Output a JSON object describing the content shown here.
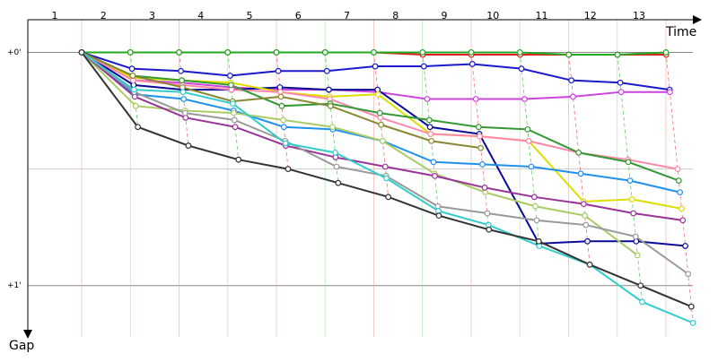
{
  "chart_data": {
    "type": "line",
    "x_label": "Time",
    "y_label": "Gap",
    "categories": [
      "1",
      "2",
      "3",
      "4",
      "5",
      "6",
      "7",
      "8",
      "9",
      "10",
      "11",
      "12",
      "13"
    ],
    "ylim": [
      -0.14,
      1.22
    ],
    "yticks": [
      {
        "value": 0,
        "label": "+0'"
      },
      {
        "value": 1,
        "label": "+1'"
      }
    ],
    "y_minor_ticks": [
      0.5
    ],
    "grid": true,
    "series": [
      {
        "color": "#e02020",
        "values": [
          0,
          0,
          0,
          0,
          0,
          0,
          0,
          0.01,
          0.01,
          0.01,
          0.01,
          0.01,
          0.01
        ]
      },
      {
        "color": "#22aa22",
        "values": [
          0,
          0,
          0,
          0,
          0,
          0,
          0,
          0,
          0,
          0,
          0.01,
          0.01,
          0
        ]
      },
      {
        "color": "#1a1acc",
        "values": [
          0,
          0.07,
          0.08,
          0.1,
          0.08,
          0.08,
          0.06,
          0.06,
          0.05,
          0.07,
          0.12,
          0.13,
          0.16
        ]
      },
      {
        "color": "#cc44dd",
        "values": [
          0,
          0.12,
          0.13,
          0.15,
          0.16,
          0.16,
          0.17,
          0.2,
          0.2,
          0.2,
          0.19,
          0.17,
          0.17
        ]
      },
      {
        "color": "#0a0a99",
        "values": [
          0,
          0.14,
          0.16,
          0.16,
          0.15,
          0.16,
          0.16,
          0.32,
          0.35,
          0.82,
          0.81,
          0.81,
          0.83
        ]
      },
      {
        "color": "#dddd00",
        "values": [
          0,
          0.11,
          0.12,
          0.13,
          0.17,
          0.19,
          0.18,
          0.35,
          0.36,
          0.38,
          0.64,
          0.63,
          0.67
        ]
      },
      {
        "color": "#ff88aa",
        "values": [
          0,
          0.12,
          0.14,
          0.16,
          0.17,
          0.2,
          0.28,
          0.35,
          0.36,
          0.38,
          0.43,
          0.46,
          0.5
        ]
      },
      {
        "color": "#339933",
        "values": [
          0,
          0.1,
          0.12,
          0.14,
          0.23,
          0.22,
          0.26,
          0.29,
          0.32,
          0.33,
          0.43,
          0.47,
          0.55
        ]
      },
      {
        "color": "#888833",
        "values": [
          0,
          0.1,
          0.15,
          0.21,
          0.19,
          0.23,
          0.31,
          0.38,
          0.41,
          null,
          null,
          null,
          null
        ]
      },
      {
        "color": "#1e90ee",
        "values": [
          0,
          0.18,
          0.2,
          0.25,
          0.32,
          0.33,
          0.38,
          0.47,
          0.48,
          0.49,
          0.52,
          0.55,
          0.6
        ]
      },
      {
        "color": "#aacc66",
        "values": [
          0,
          0.23,
          0.25,
          0.26,
          0.29,
          0.32,
          0.38,
          0.52,
          0.6,
          0.66,
          0.7,
          0.87,
          null
        ]
      },
      {
        "color": "#993399",
        "values": [
          0,
          0.19,
          0.28,
          0.32,
          0.4,
          0.45,
          0.49,
          0.53,
          0.58,
          0.62,
          0.65,
          0.69,
          0.72
        ]
      },
      {
        "color": "#999999",
        "values": [
          0,
          0.17,
          0.26,
          0.29,
          0.38,
          0.49,
          0.53,
          0.66,
          0.69,
          0.72,
          0.74,
          0.79,
          0.95
        ]
      },
      {
        "color": "#33cccc",
        "values": [
          0,
          0.16,
          0.17,
          0.22,
          0.39,
          0.43,
          0.54,
          0.68,
          0.74,
          0.83,
          0.91,
          1.07,
          1.16
        ]
      },
      {
        "color": "#333333",
        "values": [
          0,
          0.32,
          0.4,
          0.46,
          0.5,
          0.56,
          0.62,
          0.7,
          0.76,
          0.81,
          0.91,
          1.0,
          1.09
        ]
      }
    ]
  }
}
